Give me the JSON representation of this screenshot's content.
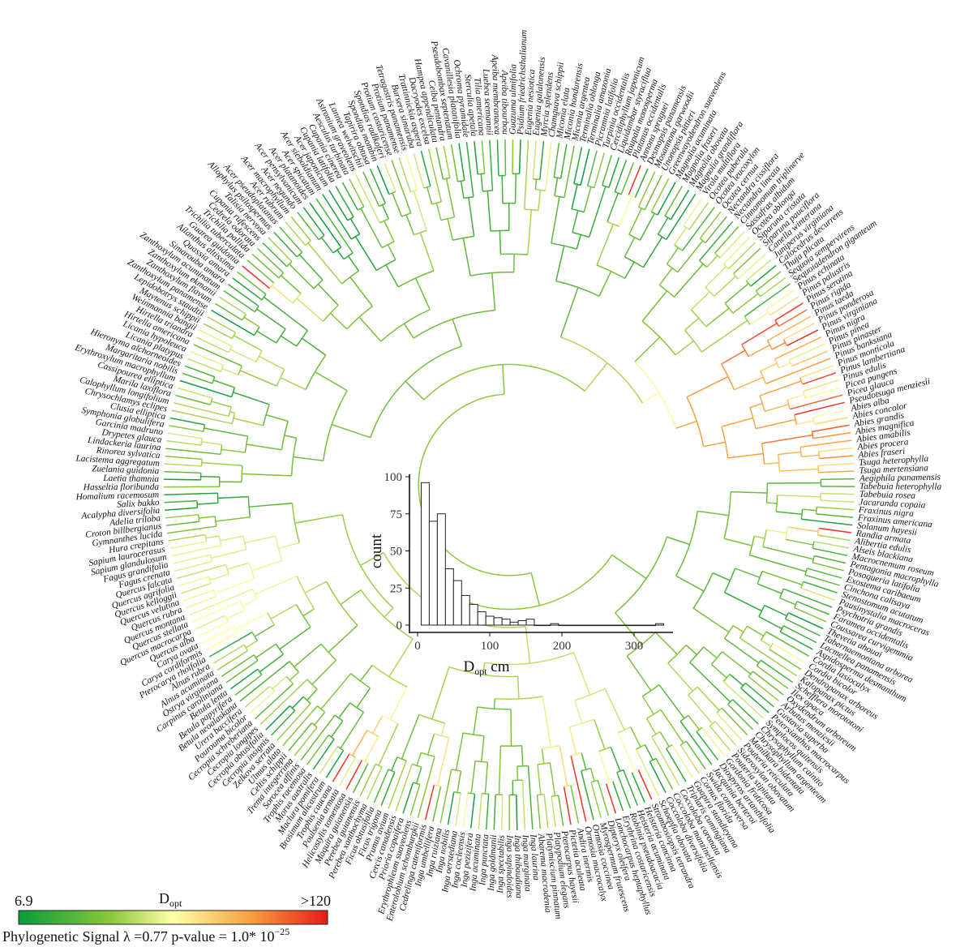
{
  "tree": {
    "species": [
      "Aegiphila panamensis",
      "Tabebuia heterophylla",
      "Tabebuia rosea",
      "Jacaranda copaia",
      "Fraxinus nigra",
      "Fraxinus americana",
      "Solanum hayesii",
      "Randia armata",
      "Alibertia edulis",
      "Alseis blackiana",
      "Macrocnemum roseum",
      "Pentagonia macrophylla",
      "Posoqueria latifolia",
      "Exostema caribaeum",
      "Cinchona calisaya",
      "Stenostomum acutatum",
      "Pausinystalia macroceras",
      "Psychotria grandis",
      "Faramea occidentalis",
      "Coussarea curvigemmia",
      "Thevetia ahouai",
      "Tabernaemontana arborea",
      "Lacmellea panamensis",
      "Aspidosperma desmanthum",
      "Cordia lasiocalyx",
      "Cordia bicolor",
      "Dendropanax arboreus",
      "Kalopanax pictus",
      "Schefflera morototoni",
      "Ilex opaca",
      "Oxydendrum arboreum",
      "Arbutus menziesii",
      "Gustavia superba",
      "Petersianthus macrocarpus",
      "Symplocos quitensis",
      "Chrysophyllum cainito",
      "Chrysophyllum argenteum",
      "Manilkara bidentata",
      "Pouteria reticulata",
      "Sideroxylon obovatum",
      "Pouteria stipitata",
      "Gordonia fruticosa",
      "Diospyros artanthifolia",
      "Jacquinia berteroi",
      "Swida controversa",
      "Cornus florida",
      "Guapira standleyana",
      "Triplaris cumingiana",
      "Coccoloba coronata",
      "Coccoloba manzinellensis",
      "Coccoloba diversifolia",
      "Schoepfia obovata",
      "Strombosiopsis tetrandra",
      "Heisteria concinna",
      "Heisteria acuminata",
      "Robinia pseudoacacia",
      "Erythrina costaricensis",
      "Lonchocarpus heptaphyllus",
      "Dipteryx oleifera",
      "Myrospermum frutescens",
      "Ormosia coccinea",
      "Ormosia macrocalyx",
      "Andira inermis",
      "Pictetia aculeata",
      "Pterocarpus hayesii",
      "Platypodium elegans",
      "Platymiscium pinnatum",
      "Abarema macradenia",
      "Inga laurina",
      "Inga marginata",
      "Inga thibaudiana",
      "Inga sapindoides",
      "Inga spectabilis",
      "Inga goldmanii",
      "Inga punctata",
      "Inga acuminata",
      "Inga pezizifera",
      "Inga cocleensis",
      "Inga oerstediana",
      "Inga nobilis",
      "Inga ruiziana",
      "Inga umbellifera",
      "Cedrelinga cateniformis",
      "Enterolobium schomburgkii",
      "Erythrophleum suaveolens",
      "Prioria copaifera",
      "Cercis canadensis",
      "Prunus avium",
      "Ficus trigona",
      "Ficus obtusifolia",
      "Perebea xanthochyma",
      "Perebea guianensis",
      "Maquira guianensis",
      "Helicostylis tomentosa",
      "Poulsenia armata",
      "Trophis caucana",
      "Brosimum alicastrum",
      "Maclura pomifera",
      "Morus australis",
      "Trophis racemosa",
      "Sorocea affinis",
      "Trema integerrima",
      "Celtis schippii",
      "Ulmus alata",
      "Zelkova serrata",
      "Cecropia insignis",
      "Cecropia obtusifolia",
      "Cecropia longipes",
      "Cecropia schreberiana",
      "Pourouma bicolor",
      "Urera baccifera",
      "Betula neoalaskana",
      "Betula papyrifera",
      "Betula lenta",
      "Carpinus caroliniana",
      "Ostrya virginiana",
      "Alnus acuminata",
      "Alnus rubra",
      "Pterocarya rhoifolia",
      "Carya cordiformis",
      "Carya ovata",
      "Quercus alba",
      "Quercus macrocarpa",
      "Quercus stellata",
      "Quercus montana",
      "Quercus rubra",
      "Quercus velutina",
      "Quercus kelloggii",
      "Quercus agrifolia",
      "Quercus falcata",
      "Fagus crenata",
      "Fagus grandifolia",
      "Sapium glandulosum",
      "Sapium laurocerasus",
      "Hura crepitans",
      "Gymnanthes lucida",
      "Croton billbergianus",
      "Adelia triloba",
      "Acalypha diversifolia",
      "Salix bakko",
      "Homalium racemosum",
      "Hasseltia floribunda",
      "Laetia thamnia",
      "Zuelania guidonia",
      "Lacistema aggregatum",
      "Rinorea sylvatica",
      "Lindackeria laurina",
      "Drypetes glauca",
      "Garcinia madruno",
      "Symphonia globulifera",
      "Clusia elliptica",
      "Chrysochlamys eclipes",
      "Calophyllum longifolium",
      "Marila laxiflora",
      "Cassipourea elliptica",
      "Erythroxylum macrophyllum",
      "Margaritaria nobilis",
      "Hieronyma alchorneoides",
      "Licania platypus",
      "Licania hypoleuca",
      "Hirtella americana",
      "Hirtella triandra",
      "Weinmannia bangii",
      "Maytenus schippii",
      "Lepidobotrys staudtii",
      "Zanthoxylum panamense",
      "Zanthoxylum flavum",
      "Zanthoxylum ekmanii",
      "Zanthoxylum acuminatum",
      "Simarouba amara",
      "Quassia amara",
      "Ailanthus altissima",
      "Guarea guidonia",
      "Trichilia tuberculata",
      "Trichilia pallida",
      "Cedrela odorata",
      "Cupania rufescens",
      "Talisia nervosa",
      "Allophylus psilospermus",
      "Acer pseudoplatanus",
      "Acer rubrum",
      "Acer macrophyllum",
      "Acer negundo",
      "Acer pensylvanicum",
      "Acer platanoides",
      "Acer spicatum",
      "Acer sieboldianum",
      "Acer japonicum",
      "Cupania latifolia",
      "Cupania cinerea",
      "Aesculus turbinata",
      "Astronium graveolens",
      "Lannea welwitschii",
      "Tapirira obtusa",
      "Spondias mombin",
      "Spondias radlkoferi",
      "Protium costaricense",
      "Protium panamense",
      "Tetragastris panamensis",
      "Bursera simaruba",
      "Trattinnickia aspera",
      "Dacryodes excelsa",
      "Hampea appendiculata",
      "Ceiba pentandra",
      "Pseudobombax septenatum",
      "Cavanillesia platanifolia",
      "Ochroma pyramidale",
      "Sterculia apetala",
      "Tilia americana",
      "Luehea seemannii",
      "Apeiba membranacea",
      "Apeiba tibourbou",
      "Guazuma ulmifolia",
      "Psidium friedrichsthalianum",
      "Eugenia nesiotica",
      "Eugenia galalonensis",
      "Myrcia splendens",
      "Chamguava schippii",
      "Miconia elata",
      "Miconia hondurensis",
      "Miconia argentea",
      "Terminalia oblonga",
      "Terminalia amazonia",
      "Picramnia latifolia",
      "Turpinia occidentalis",
      "Cercidiphyllum japonicum",
      "Liquidambar styraciflua",
      "Roupala monosperma",
      "Platanus occidentalis",
      "Annona spraguei",
      "Desmopsis panamensis",
      "Mosannona garwoodii",
      "Unonopsis pittieri",
      "Greenwayodendron suaveolens",
      "Magnolia acuminata",
      "Magnolia fraseri",
      "Magnolia obovata",
      "Magnolia grandiflora",
      "Virola multiflora",
      "Ocotea puberula",
      "Ocotea leucoxylon",
      "Ocotea cernua",
      "Nectandra cissiflora",
      "Nectandra lineata",
      "Cinnamomum triplinerve",
      "Sassafras albidum",
      "Ocotea oblonga",
      "Siparuna cristata",
      "Siparuna pauciflora",
      "Canella winterana",
      "Juniperus virginiana",
      "Calocedrus decurrens",
      "Thuja plicata",
      "Sequoia sempervirens",
      "Sequoiadendron giganteum",
      "Pinus echinata",
      "Pinus palustris",
      "Pinus serotina",
      "Pinus rigida",
      "Pinus taeda",
      "Pinus ponderosa",
      "Pinus virginiana",
      "Pinus nigra",
      "Pinus pinea",
      "Pinus pinaster",
      "Pinus banksiana",
      "Pinus monticola",
      "Pinus lambertiana",
      "Pinus edulis",
      "Picea pungens",
      "Picea glauca",
      "Pseudotsuga menziesii",
      "Abies alba",
      "Abies concolor",
      "Abies grandis",
      "Abies magnifica",
      "Abies amabilis",
      "Abies procera",
      "Abies fraseri",
      "Tsuga heterophylla",
      "Tsuga mertensiana"
    ]
  },
  "legend": {
    "title_main": "D",
    "title_sub": "opt",
    "min_label": "6.9",
    "max_label": ">120",
    "colors": [
      "#0a9a3c",
      "#8cc83c",
      "#ffffa8",
      "#f7a040",
      "#e81a1a"
    ],
    "caption_main": "Phylogenetic Signal λ =0.77 p-value = 1.0* 10",
    "caption_exp": "−25"
  },
  "chart_data": {
    "type": "bar",
    "subtype": "histogram",
    "xlabel_main": "D",
    "xlabel_sub": "opt",
    "xlabel_unit": " cm",
    "ylabel": "count",
    "xlim": [
      0,
      350
    ],
    "ylim": [
      0,
      100
    ],
    "x_ticks": [
      "0",
      "100",
      "200",
      "300"
    ],
    "y_ticks": [
      "0",
      "25",
      "50",
      "75",
      "100"
    ],
    "bin_start": 5,
    "bin_width": 11.2,
    "counts": [
      96,
      70,
      75,
      38,
      30,
      20,
      14,
      9,
      6,
      5,
      4,
      2,
      3,
      4,
      0,
      0,
      1,
      0,
      0,
      0,
      0,
      0,
      0,
      0,
      0,
      0,
      0,
      0,
      0,
      1
    ],
    "bar_fill": "#ffffff",
    "bar_stroke": "#222222",
    "grid": false
  }
}
